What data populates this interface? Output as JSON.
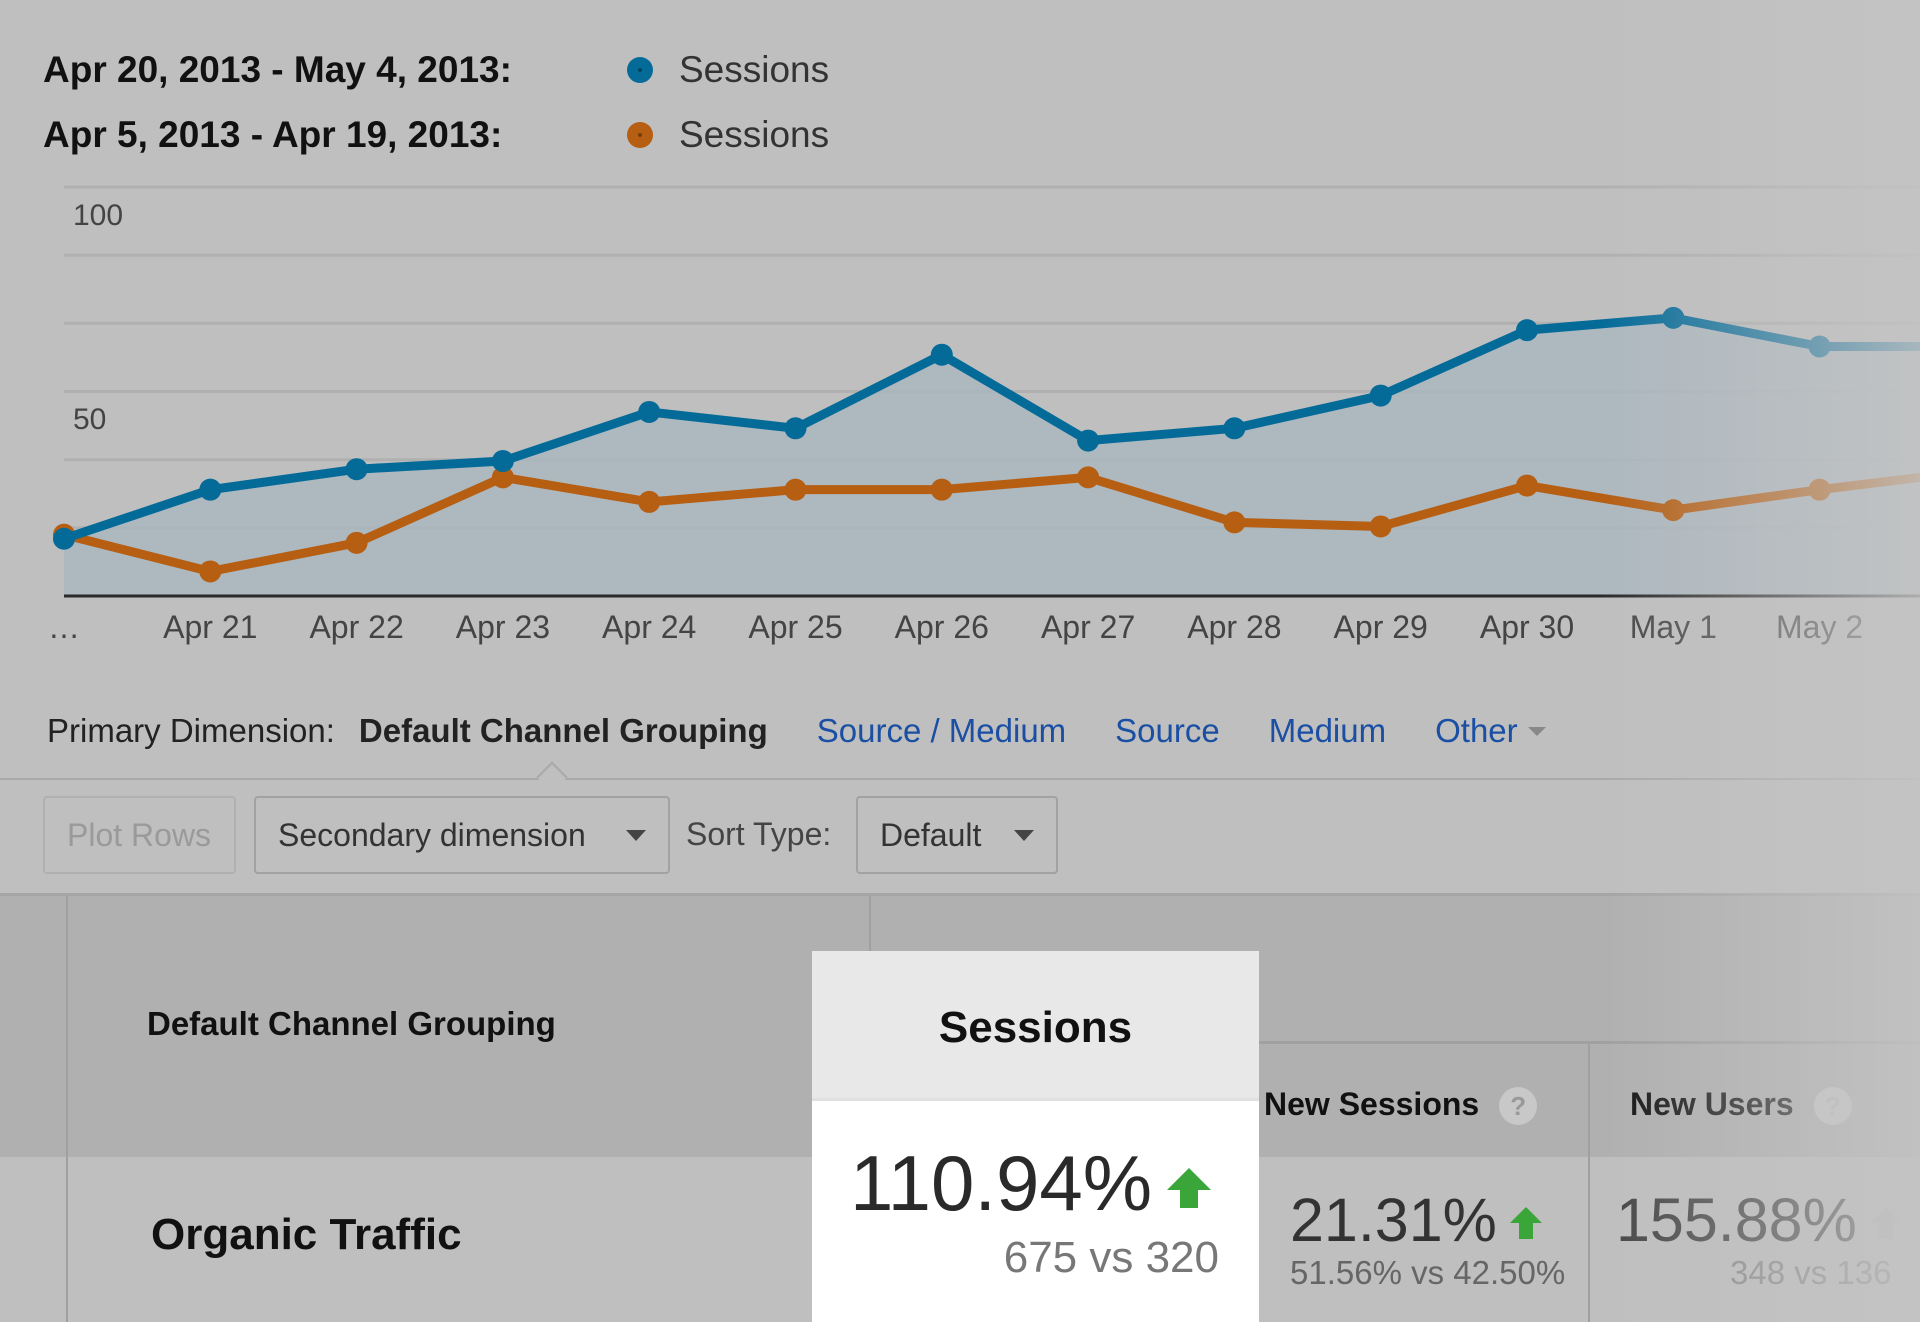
{
  "legend": [
    {
      "range": "Apr 20, 2013 - May 4, 2013:",
      "series": "Sessions",
      "color": "#046b99"
    },
    {
      "range": "Apr 5, 2013 - Apr 19, 2013:",
      "series": "Sessions",
      "color": "#b65e12"
    }
  ],
  "chart_data": {
    "type": "line",
    "x": [
      "…",
      "Apr 21",
      "Apr 22",
      "Apr 23",
      "Apr 24",
      "Apr 25",
      "Apr 26",
      "Apr 27",
      "Apr 28",
      "Apr 29",
      "Apr 30",
      "May 1",
      "May 2"
    ],
    "series": [
      {
        "name": "Sessions",
        "period": "Apr 20, 2013 - May 4, 2013",
        "color": "#046b99",
        "values": [
          14,
          26,
          31,
          33,
          45,
          41,
          59,
          38,
          41,
          49,
          65,
          68,
          61
        ]
      },
      {
        "name": "Sessions",
        "period": "Apr 5, 2013 - Apr 19, 2013",
        "color": "#b65e12",
        "values": [
          15,
          6,
          13,
          29,
          23,
          26,
          26,
          29,
          18,
          17,
          27,
          21,
          26
        ]
      }
    ],
    "yticks": [
      "100",
      "50"
    ],
    "ylim": [
      0,
      100
    ],
    "grid": true,
    "area_fill": true,
    "legend": "top-left"
  },
  "dimension": {
    "label": "Primary Dimension:",
    "active": "Default Channel Grouping",
    "links": [
      "Source / Medium",
      "Source",
      "Medium",
      "Other"
    ]
  },
  "controls": {
    "plot_rows": "Plot Rows",
    "secondary": "Secondary dimension",
    "sort_label": "Sort Type:",
    "sort_value": "Default"
  },
  "table": {
    "dim_header": "Default Channel Grouping",
    "columns": [
      "Sessions",
      "New Sessions",
      "New Users"
    ],
    "help_icon": "?",
    "row": {
      "label": "Organic Traffic",
      "sessions": {
        "change": "110.94%",
        "compare": "675 vs 320"
      },
      "new_sessions": {
        "change": "21.31%",
        "compare": "51.56% vs 42.50%"
      },
      "new_users": {
        "change": "155.88%",
        "compare": "348 vs 136"
      }
    },
    "up_color": "#3aa63a"
  }
}
